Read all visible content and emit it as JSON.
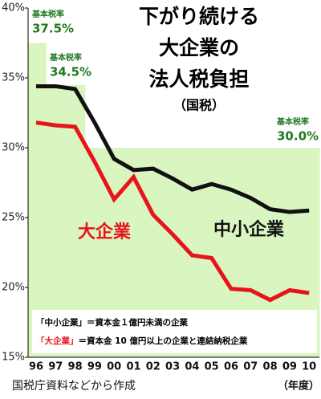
{
  "chart_data": {
    "type": "line",
    "title_lines": [
      "下がり続ける",
      "大企業の",
      "法人税負担"
    ],
    "subtitle": "（国税）",
    "categories": [
      "96",
      "97",
      "98",
      "99",
      "00",
      "01",
      "02",
      "03",
      "04",
      "05",
      "06",
      "07",
      "08",
      "09",
      "10"
    ],
    "x_axis_label": "（年度）",
    "source": "国税庁資料などから作成",
    "ylim": [
      15,
      40
    ],
    "yticks": [
      {
        "value": 15,
        "label": "15%"
      },
      {
        "value": 20,
        "label": "20%"
      },
      {
        "value": 25,
        "label": "25%"
      },
      {
        "value": 30,
        "label": "30%"
      },
      {
        "value": 35,
        "label": "35%"
      },
      {
        "value": 40,
        "label": "40%"
      }
    ],
    "base_rate": {
      "color": "#d9f5c0",
      "values": [
        37.5,
        34.5,
        34.5,
        30,
        30,
        30,
        30,
        30,
        30,
        30,
        30,
        30,
        30,
        30,
        30
      ]
    },
    "annotations": [
      {
        "label": "基本税率",
        "value": 37.5,
        "value_label": "37.5%"
      },
      {
        "label": "基本税率",
        "value": 34.5,
        "value_label": "34.5%"
      },
      {
        "label": "基本税率",
        "value": 30.0,
        "value_label": "30.0%"
      }
    ],
    "series": [
      {
        "name": "大企業",
        "color": "#e8141b",
        "values": [
          31.8,
          31.6,
          31.5,
          29.0,
          26.3,
          27.9,
          25.2,
          23.8,
          22.3,
          22.1,
          19.9,
          19.8,
          19.1,
          19.8,
          19.6
        ]
      },
      {
        "name": "中小企業",
        "color": "#111111",
        "values": [
          34.4,
          34.4,
          34.2,
          31.8,
          29.2,
          28.4,
          28.5,
          27.8,
          27.0,
          27.4,
          27.0,
          26.4,
          25.6,
          25.4,
          25.5
        ]
      }
    ],
    "notes": [
      {
        "term": "「中小企業」",
        "text": "＝資本金１億円未満の企業"
      },
      {
        "term": "「大企業」",
        "text": "＝資本金 10 億円以上の企業と連結納税企業"
      }
    ]
  }
}
